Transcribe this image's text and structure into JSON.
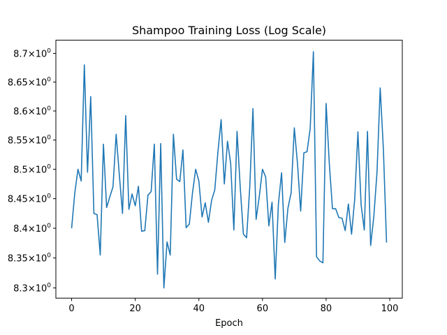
{
  "chart_data": {
    "type": "line",
    "title": "Shampoo Training Loss (Log Scale)",
    "xlabel": "Epoch",
    "ylabel": "",
    "yscale": "log",
    "xlim": [
      -4.95,
      103.95
    ],
    "ylim": [
      8.283,
      8.723
    ],
    "grid": false,
    "color": "#1f77b4",
    "xticks": [
      0,
      20,
      40,
      60,
      80,
      100
    ],
    "xtick_labels": [
      "0",
      "20",
      "40",
      "60",
      "80",
      "100"
    ],
    "yticks": [
      8.3,
      8.35,
      8.4,
      8.45,
      8.5,
      8.55,
      8.6,
      8.65,
      8.7
    ],
    "ytick_labels": [
      {
        "mantissa": "8.3",
        "base": "10",
        "exp": "0"
      },
      {
        "mantissa": "8.35",
        "base": "10",
        "exp": "0"
      },
      {
        "mantissa": "8.4",
        "base": "10",
        "exp": "0"
      },
      {
        "mantissa": "8.45",
        "base": "10",
        "exp": "0"
      },
      {
        "mantissa": "8.5",
        "base": "10",
        "exp": "0"
      },
      {
        "mantissa": "8.55",
        "base": "10",
        "exp": "0"
      },
      {
        "mantissa": "8.6",
        "base": "10",
        "exp": "0"
      },
      {
        "mantissa": "8.65",
        "base": "10",
        "exp": "0"
      },
      {
        "mantissa": "8.7",
        "base": "10",
        "exp": "0"
      }
    ],
    "x": [
      0,
      1,
      2,
      3,
      4,
      5,
      6,
      7,
      8,
      9,
      10,
      11,
      12,
      13,
      14,
      15,
      16,
      17,
      18,
      19,
      20,
      21,
      22,
      23,
      24,
      25,
      26,
      27,
      28,
      29,
      30,
      31,
      32,
      33,
      34,
      35,
      36,
      37,
      38,
      39,
      40,
      41,
      42,
      43,
      44,
      45,
      46,
      47,
      48,
      49,
      50,
      51,
      52,
      53,
      54,
      55,
      56,
      57,
      58,
      59,
      60,
      61,
      62,
      63,
      64,
      65,
      66,
      67,
      68,
      69,
      70,
      71,
      72,
      73,
      74,
      75,
      76,
      77,
      78,
      79,
      80,
      81,
      82,
      83,
      84,
      85,
      86,
      87,
      88,
      89,
      90,
      91,
      92,
      93,
      94,
      95,
      96,
      97,
      98,
      99
    ],
    "y": [
      8.4,
      8.46,
      8.5,
      8.48,
      8.68,
      8.495,
      8.625,
      8.425,
      8.423,
      8.355,
      8.543,
      8.435,
      8.453,
      8.47,
      8.56,
      8.49,
      8.425,
      8.592,
      8.432,
      8.458,
      8.438,
      8.471,
      8.395,
      8.396,
      8.456,
      8.462,
      8.543,
      8.323,
      8.544,
      8.3,
      8.377,
      8.355,
      8.56,
      8.483,
      8.479,
      8.533,
      8.401,
      8.407,
      8.46,
      8.5,
      8.48,
      8.419,
      8.443,
      8.41,
      8.447,
      8.465,
      8.53,
      8.585,
      8.475,
      8.548,
      8.51,
      8.397,
      8.565,
      8.47,
      8.39,
      8.384,
      8.47,
      8.604,
      8.415,
      8.454,
      8.5,
      8.487,
      8.404,
      8.444,
      8.315,
      8.441,
      8.494,
      8.376,
      8.434,
      8.46,
      8.571,
      8.51,
      8.429,
      8.528,
      8.53,
      8.57,
      8.703,
      8.352,
      8.345,
      8.342,
      8.613,
      8.51,
      8.433,
      8.433,
      8.418,
      8.417,
      8.396,
      8.441,
      8.39,
      8.45,
      8.564,
      8.44,
      8.397,
      8.565,
      8.371,
      8.42,
      8.495,
      8.64,
      8.535,
      8.376
    ]
  }
}
